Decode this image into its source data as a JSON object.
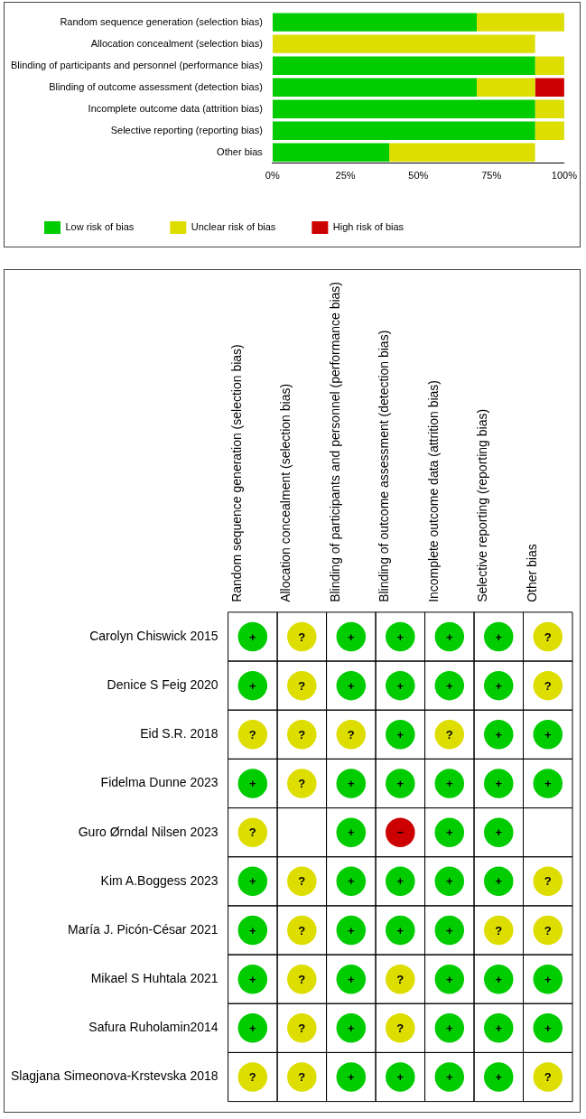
{
  "chart_data": [
    {
      "type": "bar",
      "orientation": "horizontal",
      "stacked": true,
      "legend": "bottom",
      "grid": false,
      "categories": [
        "Random sequence generation (selection bias)",
        "Allocation concealment (selection bias)",
        "Blinding of participants and personnel (performance bias)",
        "Blinding of outcome assessment (detection bias)",
        "Incomplete outcome data (attrition bias)",
        "Selective reporting (reporting bias)",
        "Other bias"
      ],
      "xlim": [
        0,
        100
      ],
      "xticks": [
        {
          "value": 0,
          "label": "0%"
        },
        {
          "value": 25,
          "label": "25%"
        },
        {
          "value": 50,
          "label": "50%"
        },
        {
          "value": 75,
          "label": "75%"
        },
        {
          "value": 100,
          "label": "100%"
        }
      ],
      "series": [
        {
          "name": "Low risk of bias",
          "color": "#00cc00",
          "values": [
            70,
            0,
            90,
            70,
            90,
            90,
            40
          ]
        },
        {
          "name": "Unclear risk of bias",
          "color": "#dddd00",
          "values": [
            30,
            90,
            10,
            20,
            10,
            10,
            50
          ]
        },
        {
          "name": "High risk of bias",
          "color": "#cc0000",
          "values": [
            0,
            0,
            0,
            10,
            0,
            0,
            0
          ]
        }
      ]
    },
    {
      "type": "heatmap",
      "categories": [
        "Random sequence generation (selection bias)",
        "Allocation concealment (selection bias)",
        "Blinding of participants and personnel (performance bias)",
        "Blinding of outcome assessment (detection bias)",
        "Incomplete outcome data (attrition bias)",
        "Selective reporting (reporting bias)",
        "Other bias"
      ],
      "y_categories": [
        "Carolyn Chiswick 2015",
        "Denice S Feig 2020",
        "Eid S.R. 2018",
        "Fidelma Dunne 2023",
        "Guro Ørndal Nilsen 2023",
        "Kim A.Boggess 2023",
        "María J. Picón-César 2021",
        "Mikael S Huhtala 2021",
        "Safura Ruholamin2014",
        "Slagjana Simeonova-Krstevska 2018"
      ],
      "cells": [
        [
          "+",
          "?",
          "+",
          "+",
          "+",
          "+",
          "?"
        ],
        [
          "+",
          "?",
          "+",
          "+",
          "+",
          "+",
          "?"
        ],
        [
          "?",
          "?",
          "?",
          "+",
          "?",
          "+",
          "+"
        ],
        [
          "+",
          "?",
          "+",
          "+",
          "+",
          "+",
          "+"
        ],
        [
          "?",
          null,
          "+",
          "−",
          "+",
          "+",
          null
        ],
        [
          "+",
          "?",
          "+",
          "+",
          "+",
          "+",
          "?"
        ],
        [
          "+",
          "?",
          "+",
          "+",
          "+",
          "?",
          "?"
        ],
        [
          "+",
          "?",
          "+",
          "?",
          "+",
          "+",
          "+"
        ],
        [
          "+",
          "?",
          "+",
          "?",
          "+",
          "+",
          "+"
        ],
        [
          "?",
          "?",
          "+",
          "+",
          "+",
          "+",
          "?"
        ]
      ],
      "colors": [
        [
          "#00cc00",
          "#dddd00",
          "#00cc00",
          "#00cc00",
          "#00cc00",
          "#00cc00",
          "#dddd00"
        ],
        [
          "#00cc00",
          "#dddd00",
          "#00cc00",
          "#00cc00",
          "#00cc00",
          "#00cc00",
          "#dddd00"
        ],
        [
          "#dddd00",
          "#dddd00",
          "#dddd00",
          "#00cc00",
          "#dddd00",
          "#00cc00",
          "#00cc00"
        ],
        [
          "#00cc00",
          "#dddd00",
          "#00cc00",
          "#00cc00",
          "#00cc00",
          "#00cc00",
          "#00cc00"
        ],
        [
          "#dddd00",
          null,
          "#00cc00",
          "#cc0000",
          "#00cc00",
          "#00cc00",
          null
        ],
        [
          "#00cc00",
          "#dddd00",
          "#00cc00",
          "#00cc00",
          "#00cc00",
          "#00cc00",
          "#dddd00"
        ],
        [
          "#00cc00",
          "#dddd00",
          "#00cc00",
          "#00cc00",
          "#00cc00",
          "#dddd00",
          "#dddd00"
        ],
        [
          "#00cc00",
          "#dddd00",
          "#00cc00",
          "#dddd00",
          "#00cc00",
          "#00cc00",
          "#00cc00"
        ],
        [
          "#00cc00",
          "#dddd00",
          "#00cc00",
          "#dddd00",
          "#00cc00",
          "#00cc00",
          "#00cc00"
        ],
        [
          "#dddd00",
          "#dddd00",
          "#00cc00",
          "#00cc00",
          "#00cc00",
          "#00cc00",
          "#dddd00"
        ]
      ]
    }
  ]
}
